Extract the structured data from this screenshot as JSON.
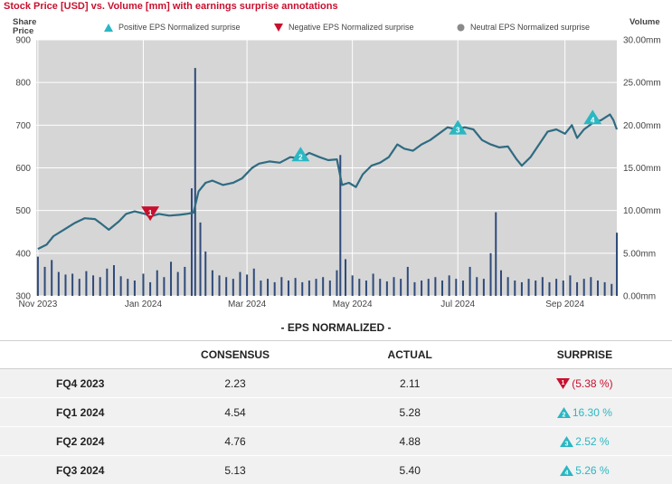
{
  "title": "Stock Price [USD] vs. Volume [mm] with earnings surprise annotations",
  "left_axis_title": [
    "Share",
    "Price"
  ],
  "right_axis_title": "Volume",
  "legend": {
    "positive": "Positive EPS Normalized surprise",
    "negative": "Negative EPS Normalized surprise",
    "neutral": "Neutral EPS Normalized surprise"
  },
  "colors": {
    "line": "#2f6b82",
    "bars": "#2f4a7a",
    "positive": "#2ab7c2",
    "negative": "#c8102e",
    "neutral": "#8a8a8a",
    "plot_bg": "#d6d6d6",
    "title": "#c8102e"
  },
  "chart_data": {
    "type": "line",
    "title": "Stock Price [USD] vs. Volume [mm] with earnings surprise annotations",
    "ylabel": "Share Price",
    "y2label": "Volume",
    "ylim": [
      300,
      900
    ],
    "yticks": [
      300,
      400,
      500,
      600,
      700,
      800,
      900
    ],
    "y2lim": [
      0,
      30
    ],
    "y2ticks": [
      "0.00mm",
      "5.00mm",
      "10.00mm",
      "15.00mm",
      "20.00mm",
      "25.00mm",
      "30.00mm"
    ],
    "xlim": [
      "2023-10-31",
      "2024-10-01"
    ],
    "xticks": [
      {
        "date": "2023-11-01",
        "label": "Nov 2023"
      },
      {
        "date": "2024-01-01",
        "label": "Jan 2024"
      },
      {
        "date": "2024-03-01",
        "label": "Mar 2024"
      },
      {
        "date": "2024-05-01",
        "label": "May 2024"
      },
      {
        "date": "2024-07-01",
        "label": "Jul 2024"
      },
      {
        "date": "2024-09-01",
        "label": "Sep 2024"
      }
    ],
    "grid": true,
    "legend_position": "top",
    "price": [
      [
        "2023-11-01",
        410
      ],
      [
        "2023-11-06",
        420
      ],
      [
        "2023-11-10",
        440
      ],
      [
        "2023-11-16",
        455
      ],
      [
        "2023-11-22",
        470
      ],
      [
        "2023-11-28",
        482
      ],
      [
        "2023-12-04",
        480
      ],
      [
        "2023-12-08",
        468
      ],
      [
        "2023-12-12",
        455
      ],
      [
        "2023-12-18",
        475
      ],
      [
        "2023-12-22",
        492
      ],
      [
        "2023-12-27",
        498
      ],
      [
        "2024-01-02",
        492
      ],
      [
        "2024-01-05",
        486
      ],
      [
        "2024-01-10",
        492
      ],
      [
        "2024-01-16",
        488
      ],
      [
        "2024-01-22",
        490
      ],
      [
        "2024-01-26",
        492
      ],
      [
        "2024-01-30",
        495
      ],
      [
        "2024-02-02",
        545
      ],
      [
        "2024-02-06",
        565
      ],
      [
        "2024-02-10",
        570
      ],
      [
        "2024-02-16",
        560
      ],
      [
        "2024-02-22",
        565
      ],
      [
        "2024-02-27",
        575
      ],
      [
        "2024-03-04",
        600
      ],
      [
        "2024-03-08",
        610
      ],
      [
        "2024-03-14",
        615
      ],
      [
        "2024-03-20",
        612
      ],
      [
        "2024-03-26",
        625
      ],
      [
        "2024-04-01",
        622
      ],
      [
        "2024-04-06",
        635
      ],
      [
        "2024-04-12",
        625
      ],
      [
        "2024-04-17",
        618
      ],
      [
        "2024-04-22",
        620
      ],
      [
        "2024-04-25",
        560
      ],
      [
        "2024-04-29",
        565
      ],
      [
        "2024-05-03",
        555
      ],
      [
        "2024-05-07",
        585
      ],
      [
        "2024-05-12",
        605
      ],
      [
        "2024-05-17",
        612
      ],
      [
        "2024-05-22",
        625
      ],
      [
        "2024-05-27",
        655
      ],
      [
        "2024-05-31",
        645
      ],
      [
        "2024-06-05",
        640
      ],
      [
        "2024-06-10",
        655
      ],
      [
        "2024-06-15",
        665
      ],
      [
        "2024-06-20",
        680
      ],
      [
        "2024-06-25",
        695
      ],
      [
        "2024-06-30",
        690
      ],
      [
        "2024-07-05",
        695
      ],
      [
        "2024-07-10",
        690
      ],
      [
        "2024-07-15",
        665
      ],
      [
        "2024-07-20",
        655
      ],
      [
        "2024-07-25",
        648
      ],
      [
        "2024-07-30",
        650
      ],
      [
        "2024-08-04",
        620
      ],
      [
        "2024-08-07",
        605
      ],
      [
        "2024-08-12",
        625
      ],
      [
        "2024-08-17",
        655
      ],
      [
        "2024-08-22",
        685
      ],
      [
        "2024-08-27",
        690
      ],
      [
        "2024-09-01",
        680
      ],
      [
        "2024-09-05",
        700
      ],
      [
        "2024-09-08",
        670
      ],
      [
        "2024-09-12",
        690
      ],
      [
        "2024-09-17",
        705
      ],
      [
        "2024-09-22",
        712
      ],
      [
        "2024-09-27",
        725
      ],
      [
        "2024-09-29",
        712
      ],
      [
        "2024-10-01",
        690
      ]
    ],
    "volume": [
      [
        "2023-11-01",
        4.6
      ],
      [
        "2023-11-05",
        3.4
      ],
      [
        "2023-11-09",
        4.2
      ],
      [
        "2023-11-13",
        2.8
      ],
      [
        "2023-11-17",
        2.5
      ],
      [
        "2023-11-21",
        2.6
      ],
      [
        "2023-11-25",
        2.0
      ],
      [
        "2023-11-29",
        2.9
      ],
      [
        "2023-12-03",
        2.4
      ],
      [
        "2023-12-07",
        2.2
      ],
      [
        "2023-12-11",
        3.2
      ],
      [
        "2023-12-15",
        3.6
      ],
      [
        "2023-12-19",
        2.3
      ],
      [
        "2023-12-23",
        2.0
      ],
      [
        "2023-12-27",
        1.8
      ],
      [
        "2024-01-01",
        2.6
      ],
      [
        "2024-01-05",
        1.6
      ],
      [
        "2024-01-09",
        3.0
      ],
      [
        "2024-01-13",
        2.2
      ],
      [
        "2024-01-17",
        4.0
      ],
      [
        "2024-01-21",
        2.8
      ],
      [
        "2024-01-25",
        3.4
      ],
      [
        "2024-01-29",
        12.6
      ],
      [
        "2024-01-31",
        26.7
      ],
      [
        "2024-02-03",
        8.6
      ],
      [
        "2024-02-06",
        5.2
      ],
      [
        "2024-02-10",
        3.0
      ],
      [
        "2024-02-14",
        2.4
      ],
      [
        "2024-02-18",
        2.2
      ],
      [
        "2024-02-22",
        2.0
      ],
      [
        "2024-02-26",
        2.8
      ],
      [
        "2024-03-01",
        2.5
      ],
      [
        "2024-03-05",
        3.2
      ],
      [
        "2024-03-09",
        1.8
      ],
      [
        "2024-03-13",
        2.0
      ],
      [
        "2024-03-17",
        1.6
      ],
      [
        "2024-03-21",
        2.2
      ],
      [
        "2024-03-25",
        1.8
      ],
      [
        "2024-03-29",
        2.1
      ],
      [
        "2024-04-02",
        1.6
      ],
      [
        "2024-04-06",
        1.8
      ],
      [
        "2024-04-10",
        2.0
      ],
      [
        "2024-04-14",
        2.2
      ],
      [
        "2024-04-18",
        1.8
      ],
      [
        "2024-04-22",
        3.0
      ],
      [
        "2024-04-24",
        16.5
      ],
      [
        "2024-04-27",
        4.3
      ],
      [
        "2024-05-01",
        2.4
      ],
      [
        "2024-05-05",
        2.0
      ],
      [
        "2024-05-09",
        1.8
      ],
      [
        "2024-05-13",
        2.6
      ],
      [
        "2024-05-17",
        2.0
      ],
      [
        "2024-05-21",
        1.7
      ],
      [
        "2024-05-25",
        2.2
      ],
      [
        "2024-05-29",
        2.0
      ],
      [
        "2024-06-02",
        3.4
      ],
      [
        "2024-06-06",
        1.6
      ],
      [
        "2024-06-10",
        1.8
      ],
      [
        "2024-06-14",
        2.0
      ],
      [
        "2024-06-18",
        2.2
      ],
      [
        "2024-06-22",
        1.8
      ],
      [
        "2024-06-26",
        2.4
      ],
      [
        "2024-06-30",
        2.0
      ],
      [
        "2024-07-04",
        1.8
      ],
      [
        "2024-07-08",
        3.4
      ],
      [
        "2024-07-12",
        2.2
      ],
      [
        "2024-07-16",
        2.0
      ],
      [
        "2024-07-20",
        5.0
      ],
      [
        "2024-07-23",
        9.8
      ],
      [
        "2024-07-26",
        3.0
      ],
      [
        "2024-07-30",
        2.2
      ],
      [
        "2024-08-03",
        1.8
      ],
      [
        "2024-08-07",
        1.6
      ],
      [
        "2024-08-11",
        2.0
      ],
      [
        "2024-08-15",
        1.8
      ],
      [
        "2024-08-19",
        2.2
      ],
      [
        "2024-08-23",
        1.6
      ],
      [
        "2024-08-27",
        2.0
      ],
      [
        "2024-08-31",
        1.8
      ],
      [
        "2024-09-04",
        2.4
      ],
      [
        "2024-09-08",
        1.6
      ],
      [
        "2024-09-12",
        2.0
      ],
      [
        "2024-09-16",
        2.2
      ],
      [
        "2024-09-20",
        1.8
      ],
      [
        "2024-09-24",
        1.6
      ],
      [
        "2024-09-28",
        1.4
      ],
      [
        "2024-10-01",
        7.4
      ]
    ],
    "annotations": [
      {
        "label": "1",
        "date": "2024-01-05",
        "price": 497,
        "type": "negative"
      },
      {
        "label": "2",
        "date": "2024-04-01",
        "price": 628,
        "type": "positive"
      },
      {
        "label": "3",
        "date": "2024-07-01",
        "price": 691,
        "type": "positive"
      },
      {
        "label": "4",
        "date": "2024-09-17",
        "price": 715,
        "type": "positive"
      }
    ]
  },
  "eps": {
    "title": "- EPS NORMALIZED -",
    "headers": [
      "",
      "CONSENSUS",
      "ACTUAL",
      "SURPRISE"
    ],
    "rows": [
      {
        "period": "FQ4 2023",
        "consensus": "2.23",
        "actual": "2.11",
        "surprise": "(5.38 %)",
        "badge": "1",
        "type": "negative"
      },
      {
        "period": "FQ1 2024",
        "consensus": "4.54",
        "actual": "5.28",
        "surprise": "16.30 %",
        "badge": "2",
        "type": "positive"
      },
      {
        "period": "FQ2 2024",
        "consensus": "4.76",
        "actual": "4.88",
        "surprise": "2.52 %",
        "badge": "3",
        "type": "positive"
      },
      {
        "period": "FQ3 2024",
        "consensus": "5.13",
        "actual": "5.40",
        "surprise": "5.26 %",
        "badge": "4",
        "type": "positive"
      }
    ]
  }
}
